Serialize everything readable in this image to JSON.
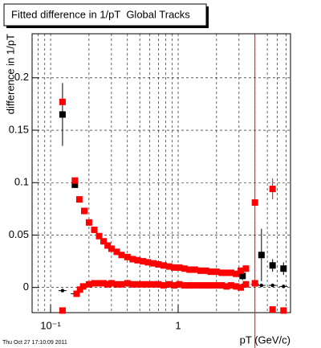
{
  "chart_data": {
    "type": "scatter",
    "title": "Fitted difference in 1/pT  Global Tracks",
    "x_label": "pT (GeV/c)",
    "y_label": "difference in 1/pT",
    "timestamp": "Thu Oct 27 17:10:09 2011",
    "log_x": true,
    "grid": true,
    "xlim": [
      0.0716,
      7.6
    ],
    "ylim": [
      -0.024,
      0.242
    ],
    "xticks": [
      {
        "value": 0.1,
        "label": "10⁻¹"
      },
      1
    ],
    "xgrid": [
      0.08,
      0.09,
      0.1,
      0.2,
      0.3,
      0.4,
      0.5,
      0.6,
      0.7,
      0.8,
      0.9,
      1,
      2,
      3,
      4,
      5,
      6,
      7
    ],
    "yticks": [
      0,
      0.05,
      0.1,
      0.15,
      0.2
    ],
    "series": [
      {
        "color": "#000000",
        "marker": "square",
        "x": [
          0.124,
          0.155,
          0.184,
          3.2,
          4.5,
          5.5,
          6.7
        ],
        "values": [
          0.165,
          0.098,
          0.073,
          0.011,
          0.031,
          0.021,
          0.018
        ],
        "errors": [
          0.03,
          0.003,
          0.002,
          0.004,
          0.025,
          0.006,
          0.006
        ]
      },
      {
        "color": "#000000",
        "marker": "dot",
        "x": [
          0.124,
          0.155,
          3.2,
          4.0,
          4.5,
          5.5,
          6.7
        ],
        "values": [
          -0.003,
          -0.006,
          0.002,
          0.003,
          0.002,
          0.002,
          0.001
        ]
      },
      {
        "color": "#ff0000",
        "marker": "square",
        "x": [
          0.124,
          0.155,
          0.168,
          0.184,
          0.2,
          0.22,
          0.24,
          0.26,
          0.28,
          0.3,
          0.33,
          0.36,
          0.4,
          0.44,
          0.48,
          0.53,
          0.58,
          0.64,
          0.7,
          0.77,
          0.85,
          0.93,
          1.02,
          1.12,
          1.23,
          1.35,
          1.5,
          1.65,
          1.8,
          2.0,
          2.2,
          2.4,
          2.6,
          2.85,
          3.1,
          3.4,
          4.0,
          5.5
        ],
        "values": [
          0.177,
          0.102,
          0.084,
          0.073,
          0.062,
          0.055,
          0.049,
          0.044,
          0.04,
          0.037,
          0.034,
          0.031,
          0.029,
          0.027,
          0.026,
          0.025,
          0.024,
          0.023,
          0.022,
          0.021,
          0.02,
          0.019,
          0.019,
          0.018,
          0.017,
          0.017,
          0.016,
          0.016,
          0.015,
          0.015,
          0.014,
          0.014,
          0.014,
          0.013,
          0.016,
          0.018,
          0.081,
          0.094
        ],
        "errors": [
          0.004,
          0.002,
          0.002,
          0.001,
          0.001,
          0.001,
          0.001,
          0.001,
          0.001,
          0.001,
          0.001,
          0.001,
          0.001,
          0.001,
          0.001,
          0.001,
          0.001,
          0.001,
          0.001,
          0.001,
          0.001,
          0.001,
          0.001,
          0.001,
          0.001,
          0.001,
          0.001,
          0.001,
          0.001,
          0.001,
          0.001,
          0.001,
          0.001,
          0.001,
          0.002,
          0.003,
          0.16,
          0.01
        ]
      },
      {
        "color": "#ff0000",
        "marker": "square",
        "x": [
          0.124,
          0.16,
          0.17,
          0.18,
          0.2,
          0.22,
          0.24,
          0.26,
          0.28,
          0.3,
          0.33,
          0.36,
          0.4,
          0.44,
          0.48,
          0.53,
          0.58,
          0.64,
          0.7,
          0.77,
          0.85,
          0.93,
          1.02,
          1.12,
          1.23,
          1.35,
          1.5,
          1.65,
          1.8,
          2.0,
          2.2,
          2.4,
          2.6,
          2.85,
          3.1,
          3.4,
          4.0,
          5.5,
          6.7
        ],
        "values": [
          -0.022,
          -0.006,
          -0.002,
          0.001,
          0.003,
          0.004,
          0.004,
          0.004,
          0.003,
          0.004,
          0.003,
          0.003,
          0.004,
          0.003,
          0.003,
          0.003,
          0.003,
          0.003,
          0.003,
          0.002,
          0.003,
          0.002,
          0.003,
          0.002,
          0.002,
          0.002,
          0.002,
          0.002,
          0.002,
          0.002,
          0.002,
          0.001,
          0.002,
          0.001,
          0.0,
          0.003,
          0.004,
          -0.021,
          -0.022
        ]
      }
    ]
  }
}
